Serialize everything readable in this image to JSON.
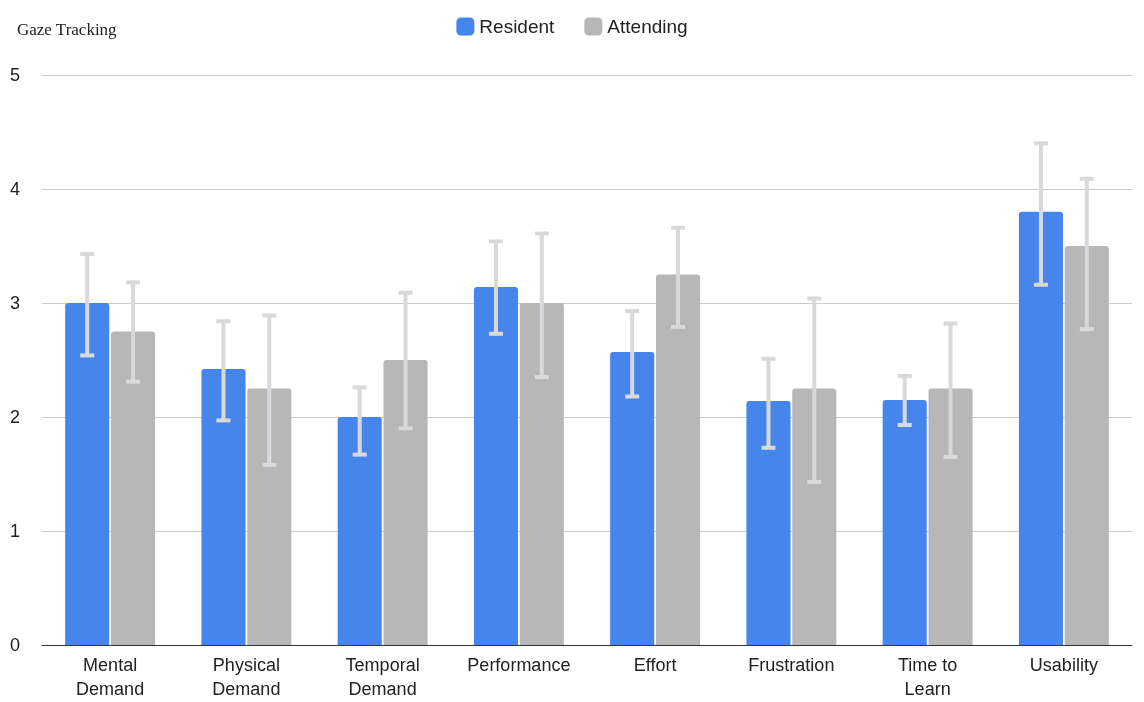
{
  "chart_data": {
    "type": "bar",
    "title": "Gaze Tracking",
    "categories": [
      "Mental\nDemand",
      "Physical\nDemand",
      "Temporal\nDemand",
      "Performance",
      "Effort",
      "Frustration",
      "Time to\nLearn",
      "Usability"
    ],
    "series": [
      {
        "name": "Resident",
        "color": "#4686ec",
        "values": [
          3.0,
          2.42,
          2.0,
          3.14,
          2.57,
          2.14,
          2.15,
          3.8
        ],
        "errors": [
          [
            2.54,
            3.43
          ],
          [
            1.97,
            2.84
          ],
          [
            1.67,
            2.26
          ],
          [
            2.73,
            3.54
          ],
          [
            2.18,
            2.93
          ],
          [
            1.73,
            2.51
          ],
          [
            1.93,
            2.36
          ],
          [
            3.16,
            4.4
          ]
        ]
      },
      {
        "name": "Attending",
        "color": "#b7b7b7",
        "values": [
          2.75,
          2.25,
          2.5,
          3.0,
          3.25,
          2.25,
          2.25,
          3.5
        ],
        "errors": [
          [
            2.31,
            3.18
          ],
          [
            1.58,
            2.89
          ],
          [
            1.9,
            3.09
          ],
          [
            2.35,
            3.61
          ],
          [
            2.79,
            3.66
          ],
          [
            1.43,
            3.04
          ],
          [
            1.65,
            2.82
          ],
          [
            2.77,
            4.09
          ]
        ]
      }
    ],
    "ylim": [
      0,
      5
    ],
    "yticks": [
      0,
      1,
      2,
      3,
      4,
      5
    ],
    "grid": "y",
    "legend": "top"
  }
}
